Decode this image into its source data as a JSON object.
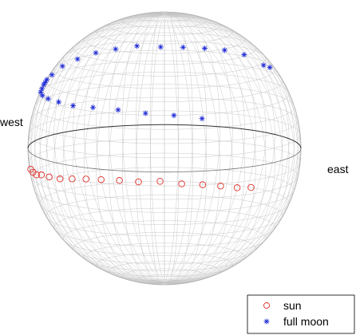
{
  "chart_data": {
    "type": "scatter",
    "title": "",
    "labels": {
      "left": "west",
      "right": "east"
    },
    "colors": {
      "sphere_grid": "#c4c4c4",
      "horizon": "#333333",
      "sun": "#e0302a",
      "moon": "#1f2bd6"
    },
    "grid": true,
    "legend_position": "bottom-right",
    "series": [
      {
        "name": "sun",
        "marker": "circle",
        "points": [
          {
            "azimuth": -84,
            "elevation": -10
          },
          {
            "azimuth": -80,
            "elevation": -12
          },
          {
            "azimuth": -75,
            "elevation": -14
          },
          {
            "azimuth": -69,
            "elevation": -15
          },
          {
            "azimuth": -62,
            "elevation": -17
          },
          {
            "azimuth": -54,
            "elevation": -19
          },
          {
            "azimuth": -46,
            "elevation": -20
          },
          {
            "azimuth": -38,
            "elevation": -21
          },
          {
            "azimuth": -30,
            "elevation": -22
          },
          {
            "azimuth": -21,
            "elevation": -23
          },
          {
            "azimuth": -12,
            "elevation": -24
          },
          {
            "azimuth": -2,
            "elevation": -24
          },
          {
            "azimuth": 8,
            "elevation": -25
          },
          {
            "azimuth": 18,
            "elevation": -25
          },
          {
            "azimuth": 27,
            "elevation": -25
          },
          {
            "azimuth": 36,
            "elevation": -25
          },
          {
            "azimuth": 44,
            "elevation": -24
          }
        ]
      },
      {
        "name": "full moon",
        "marker": "star",
        "points": [
          {
            "azimuth": 67,
            "elevation": 33
          },
          {
            "azimuth": 60,
            "elevation": 33
          },
          {
            "azimuth": 47,
            "elevation": 37
          },
          {
            "azimuth": 34,
            "elevation": 38
          },
          {
            "azimuth": 22,
            "elevation": 38
          },
          {
            "azimuth": 10,
            "elevation": 38
          },
          {
            "azimuth": -2,
            "elevation": 38
          },
          {
            "azimuth": -15,
            "elevation": 39
          },
          {
            "azimuth": -27,
            "elevation": 38
          },
          {
            "azimuth": -39,
            "elevation": 37
          },
          {
            "azimuth": -51,
            "elevation": 35
          },
          {
            "azimuth": -63,
            "elevation": 33
          },
          {
            "azimuth": -72,
            "elevation": 30
          },
          {
            "azimuth": -80,
            "elevation": 29
          },
          {
            "azimuth": -82,
            "elevation": 28
          },
          {
            "azimuth": -83,
            "elevation": 27
          },
          {
            "azimuth": -82,
            "elevation": 25
          },
          {
            "azimuth": -80,
            "elevation": 23
          },
          {
            "azimuth": -72,
            "elevation": 20
          },
          {
            "azimuth": -63,
            "elevation": 17
          },
          {
            "azimuth": -53,
            "elevation": 14
          },
          {
            "azimuth": -43,
            "elevation": 11
          },
          {
            "azimuth": -32,
            "elevation": 9
          },
          {
            "azimuth": -20,
            "elevation": 7
          },
          {
            "azimuth": -8,
            "elevation": 5
          },
          {
            "azimuth": 4,
            "elevation": 4
          },
          {
            "azimuth": 16,
            "elevation": 3
          }
        ]
      }
    ]
  }
}
